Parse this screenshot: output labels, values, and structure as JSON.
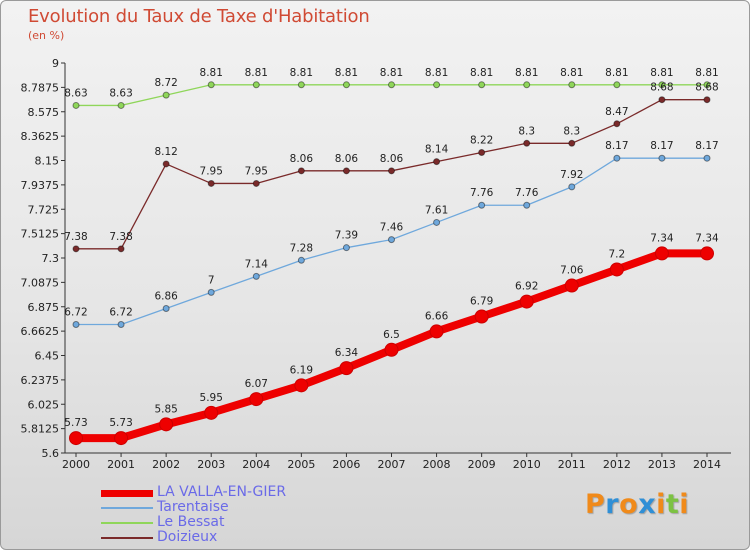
{
  "title": "Evolution du Taux de Taxe d'Habitation",
  "unit": "(en %)",
  "logo": {
    "text": "Proxiti",
    "colors": [
      "#f08a1a",
      "#2f8fd6",
      "#f08a1a",
      "#2f8fd6",
      "#f08a1a",
      "#7cc242",
      "#f08a1a"
    ]
  },
  "chart_data": {
    "type": "line",
    "title": "Evolution du Taux de Taxe d'Habitation",
    "ylabel": "(en %)",
    "xlabel": "",
    "x": [
      "2000",
      "2001",
      "2002",
      "2003",
      "2004",
      "2005",
      "2006",
      "2007",
      "2008",
      "2009",
      "2010",
      "2011",
      "2012",
      "2013",
      "2014"
    ],
    "ylim": [
      5.6,
      9
    ],
    "yticks": [
      "5.6",
      "5.8125",
      "6.025",
      "6.2375",
      "6.45",
      "6.6625",
      "6.875",
      "7.0875",
      "7.3",
      "7.5125",
      "7.725",
      "7.9375",
      "8.15",
      "8.3625",
      "8.575",
      "8.7875",
      "9"
    ],
    "grid": false,
    "legend_position": "bottom-left",
    "series": [
      {
        "name": "LA VALLA-EN-GIER",
        "color": "#ee0000",
        "values": [
          5.73,
          5.73,
          5.85,
          5.95,
          6.07,
          6.19,
          6.34,
          6.5,
          6.66,
          6.79,
          6.92,
          7.06,
          7.2,
          7.34,
          7.34
        ],
        "labels": [
          "5.73",
          "5.73",
          "5.85",
          "5.95",
          "6.07",
          "6.19",
          "6.34",
          "6.5",
          "6.66",
          "6.79",
          "6.92",
          "7.06",
          "7.2",
          "7.34",
          "7.34"
        ]
      },
      {
        "name": "Tarentaise",
        "color": "#6fa8dc",
        "values": [
          6.72,
          6.72,
          6.86,
          7,
          7.14,
          7.28,
          7.39,
          7.46,
          7.61,
          7.76,
          7.76,
          7.92,
          8.17,
          8.17,
          8.17
        ],
        "labels": [
          "6.72",
          "6.72",
          "6.86",
          "7",
          "7.14",
          "7.28",
          "7.39",
          "7.46",
          "7.61",
          "7.76",
          "7.76",
          "7.92",
          "8.17",
          "8.17",
          "8.17"
        ]
      },
      {
        "name": "Le Bessat",
        "color": "#8fd65a",
        "values": [
          8.63,
          8.63,
          8.72,
          8.81,
          8.81,
          8.81,
          8.81,
          8.81,
          8.81,
          8.81,
          8.81,
          8.81,
          8.81,
          8.81,
          8.81
        ],
        "labels": [
          "8.63",
          "8.63",
          "8.72",
          "8.81",
          "8.81",
          "8.81",
          "8.81",
          "8.81",
          "8.81",
          "8.81",
          "8.81",
          "8.81",
          "8.81",
          "8.81",
          "8.81"
        ]
      },
      {
        "name": "Doizieux",
        "color": "#7a2a2a",
        "values": [
          7.38,
          7.38,
          8.12,
          7.95,
          7.95,
          8.06,
          8.06,
          8.06,
          8.14,
          8.22,
          8.3,
          8.3,
          8.47,
          8.68,
          8.68
        ],
        "labels": [
          "7.38",
          "7.38",
          "8.12",
          "7.95",
          "7.95",
          "8.06",
          "8.06",
          "8.06",
          "8.14",
          "8.22",
          "8.3",
          "8.3",
          "8.47",
          "8.68",
          "8.68"
        ]
      }
    ]
  }
}
